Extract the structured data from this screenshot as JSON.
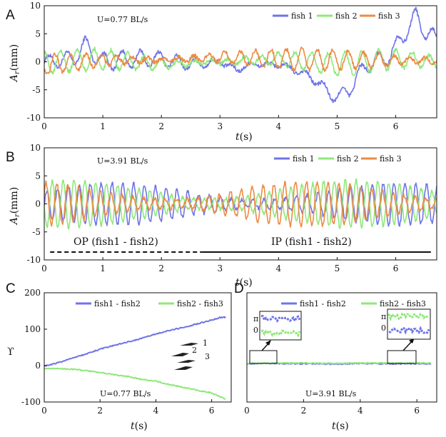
{
  "colors": {
    "fish1": "#6f74e8",
    "fish2": "#8fe87a",
    "fish3": "#ec8b43",
    "pair12": "#6f74e8",
    "pair23": "#8fe87a"
  },
  "chart_data": [
    {
      "id": "A",
      "type": "line",
      "panel_label": "A",
      "xlabel_var": "t",
      "xlabel_unit": "(s)",
      "ylabel_var": "A",
      "ylabel_sub": "r",
      "ylabel_unit": "(mm)",
      "xlim": [
        0,
        6.7
      ],
      "ylim": [
        -10,
        10
      ],
      "xticks": [
        0,
        1,
        2,
        3,
        4,
        5,
        6
      ],
      "yticks": [
        -10,
        -5,
        0,
        5,
        10
      ],
      "annotation": "U=0.77 BL/s",
      "series": [
        {
          "name": "fish 1",
          "color_key": "fish1",
          "t_end": 6.7,
          "oscillation": {
            "freq_hz": 3.2,
            "amplitude_mm": 1.3
          },
          "envelope_t": [
            0,
            0.5,
            0.7,
            1,
            1.5,
            2,
            2.5,
            3,
            3.3,
            3.5,
            4,
            4.3,
            4.6,
            4.8,
            5,
            5.2,
            5.5,
            5.8,
            6,
            6.2,
            6.35,
            6.5,
            6.7
          ],
          "envelope_y": [
            0,
            0.5,
            3,
            0,
            0.5,
            0.5,
            -0.5,
            0,
            -1.5,
            -0.5,
            -0.5,
            -1.5,
            -3,
            -5,
            -6.5,
            -5,
            -0.5,
            0.5,
            2.5,
            6,
            8,
            5.5,
            4
          ]
        },
        {
          "name": "fish 2",
          "color_key": "fish2",
          "t_end": 6.7,
          "oscillation": {
            "freq_hz": 3.5,
            "amplitude_mm": 1.6
          },
          "envelope_t": [
            0,
            1,
            2,
            3,
            4,
            5,
            6,
            6.7
          ],
          "envelope_y": [
            0,
            0.5,
            -0.5,
            0,
            0.5,
            -0.5,
            0.5,
            0
          ]
        },
        {
          "name": "fish 3",
          "color_key": "fish3",
          "t_end": 6.7,
          "oscillation": {
            "freq_hz": 3.8,
            "amplitude_mm": 1.5
          },
          "envelope_t": [
            0,
            1,
            2,
            3,
            4,
            5,
            6,
            6.7
          ],
          "envelope_y": [
            -0.5,
            0.3,
            0.3,
            0.8,
            0.5,
            0.3,
            0.3,
            0.2
          ]
        }
      ]
    },
    {
      "id": "B",
      "type": "line",
      "panel_label": "B",
      "xlabel_var": "t",
      "xlabel_unit": "(s)",
      "ylabel_var": "A",
      "ylabel_sub": "r",
      "ylabel_unit": "(mm)",
      "xlim": [
        0,
        6.7
      ],
      "ylim": [
        -10,
        10
      ],
      "xticks": [
        0,
        1,
        2,
        3,
        4,
        5,
        6
      ],
      "yticks": [
        -10,
        -5,
        0,
        5,
        10
      ],
      "annotation": "U=3.91 BL/s",
      "series": [
        {
          "name": "fish 1",
          "color_key": "fish1",
          "t_end": 6.7,
          "oscillation": {
            "freq_hz": 5.4,
            "amplitude_mm": 3.0,
            "phase_rad": 0.0
          },
          "envelope_t": [
            0,
            6.7
          ],
          "envelope_y": [
            0,
            0
          ]
        },
        {
          "name": "fish 2",
          "color_key": "fish2",
          "t_end": 6.7,
          "oscillation": {
            "freq_hz": 5.4,
            "amplitude_mm": 3.4,
            "phase_rad": 3.14
          },
          "envelope_t": [
            0,
            6.7
          ],
          "envelope_y": [
            0,
            0
          ]
        },
        {
          "name": "fish 3",
          "color_key": "fish3",
          "t_end": 6.7,
          "oscillation": {
            "freq_hz": 5.4,
            "amplitude_mm": 3.2,
            "phase_rad": 0.5
          },
          "envelope_t": [
            0,
            6.7
          ],
          "envelope_y": [
            0,
            0
          ]
        }
      ],
      "regions": [
        {
          "label": "OP (fish1 - fish2)",
          "x": [
            0.1,
            2.7
          ],
          "style": "dashed"
        },
        {
          "label": "IP (fish1 - fish2)",
          "x": [
            2.7,
            6.6
          ],
          "style": "solid"
        }
      ]
    },
    {
      "id": "C",
      "type": "line",
      "panel_label": "C",
      "xlabel_var": "t",
      "xlabel_unit": "(s)",
      "ylabel": "ϒ",
      "xlim": [
        0,
        6.7
      ],
      "ylim": [
        -100,
        200
      ],
      "xticks": [
        0,
        2,
        4,
        6
      ],
      "yticks": [
        -100,
        0,
        100,
        200
      ],
      "annotation": "U=0.77 BL/s",
      "school_labels": [
        "1",
        "2",
        "3"
      ],
      "series": [
        {
          "name": "fish1 - fish2",
          "color_key": "pair12",
          "x": [
            0,
            0.2,
            0.5,
            1,
            1.5,
            2,
            2.5,
            3,
            3.5,
            4,
            4.5,
            5,
            5.5,
            6,
            6.3,
            6.5
          ],
          "y": [
            0,
            2,
            8,
            20,
            32,
            45,
            55,
            65,
            75,
            87,
            97,
            105,
            115,
            125,
            132,
            133
          ]
        },
        {
          "name": "fish2 - fish3",
          "color_key": "pair23",
          "x": [
            0,
            0.3,
            0.5,
            1,
            1.5,
            2,
            2.5,
            3,
            3.5,
            4,
            4.5,
            5,
            5.5,
            6,
            6.3,
            6.5
          ],
          "y": [
            -8,
            -8,
            -8,
            -10,
            -14,
            -19,
            -25,
            -30,
            -38,
            -43,
            -52,
            -60,
            -68,
            -75,
            -85,
            -92
          ]
        }
      ]
    },
    {
      "id": "D",
      "type": "line",
      "panel_label": "D",
      "xlabel_var": "t",
      "xlabel_unit": "(s)",
      "xlim": [
        0,
        6.7
      ],
      "ylim": [
        -100,
        200
      ],
      "xticks": [
        0,
        2,
        4,
        6
      ],
      "yticks": [],
      "annotation": "U=3.91 BL/s",
      "series": [
        {
          "name": "fish1 - fish2",
          "color_key": "pair12",
          "x": [
            0,
            1,
            2,
            3,
            4,
            5,
            6,
            6.5
          ],
          "y": [
            5,
            6,
            5,
            4,
            6,
            5,
            5,
            5
          ]
        },
        {
          "name": "fish2 - fish3",
          "color_key": "pair23",
          "x": [
            0,
            1,
            2,
            3,
            4,
            5,
            6,
            6.5
          ],
          "y": [
            6,
            7,
            7,
            6,
            7,
            7,
            7,
            7
          ]
        }
      ],
      "insets": [
        {
          "pi_label": "π",
          "zero_label": "0",
          "upper_series": "pair12",
          "lower_series": "pair23"
        },
        {
          "pi_label": "π",
          "zero_label": "0",
          "upper_series": "pair23",
          "lower_series": "pair12"
        }
      ]
    }
  ]
}
